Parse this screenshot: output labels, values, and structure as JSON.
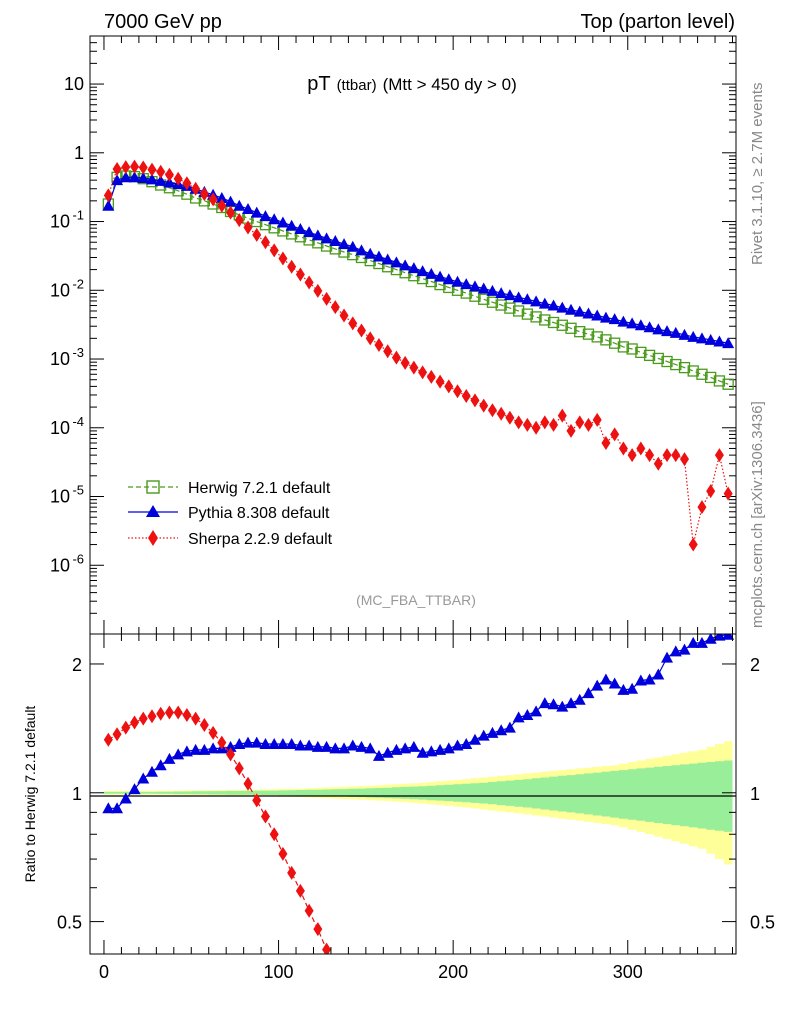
{
  "header": {
    "left": "7000 GeV pp",
    "right": "Top (parton level)"
  },
  "plot_title": {
    "main": "pT",
    "sub": "(ttbar)",
    "rest": "(Mtt > 450 dy > 0)"
  },
  "side_labels": {
    "rivet": "Rivet 3.1.10, ≥ 2.7M events",
    "mcplots": "mcplots.cern.ch [arXiv:1306.3436]"
  },
  "analysis_label": "(MC_FBA_TTBAR)",
  "ratio_ylabel": "Ratio to Herwig 7.2.1 default",
  "legend": [
    {
      "label": "Herwig 7.2.1 default"
    },
    {
      "label": "Pythia 8.308 default"
    },
    {
      "label": "Sherpa 2.2.9 default"
    }
  ],
  "colors": {
    "herwig": "#4a9a1c",
    "pythia": "#0000dd",
    "sherpa": "#ee1111",
    "band_stat": "#99ee99",
    "band_syst": "#ffff99"
  },
  "chart_data": [
    {
      "type": "scatter",
      "yscale": "log",
      "xlim": [
        -8,
        362
      ],
      "ylim": [
        1e-07,
        50
      ],
      "y_tick_labels": [
        "10^-6",
        "10^-5",
        "10^-4",
        "10^-3",
        "10^-2",
        "10^-1",
        "1",
        "10"
      ],
      "legend_position": "bottom-left",
      "x": [
        2.5,
        7.5,
        12.5,
        17.5,
        22.5,
        27.5,
        32.5,
        37.5,
        42.5,
        47.5,
        52.5,
        57.5,
        62.5,
        67.5,
        72.5,
        77.5,
        82.5,
        87.5,
        92.5,
        97.5,
        102.5,
        107.5,
        112.5,
        117.5,
        122.5,
        127.5,
        132.5,
        137.5,
        142.5,
        147.5,
        152.5,
        157.5,
        162.5,
        167.5,
        172.5,
        177.5,
        182.5,
        187.5,
        192.5,
        197.5,
        202.5,
        207.5,
        212.5,
        217.5,
        222.5,
        227.5,
        232.5,
        237.5,
        242.5,
        247.5,
        252.5,
        257.5,
        262.5,
        267.5,
        272.5,
        277.5,
        282.5,
        287.5,
        292.5,
        297.5,
        302.5,
        307.5,
        312.5,
        317.5,
        322.5,
        327.5,
        332.5,
        337.5,
        342.5,
        347.5,
        352.5,
        357.5
      ],
      "series": [
        {
          "name": "Herwig 7.2.1 default",
          "marker": "open-square",
          "line": "dashed",
          "values": [
            0.18,
            0.44,
            0.46,
            0.45,
            0.42,
            0.38,
            0.34,
            0.31,
            0.28,
            0.25,
            0.22,
            0.2,
            0.18,
            0.16,
            0.14,
            0.125,
            0.112,
            0.1,
            0.09,
            0.081,
            0.073,
            0.066,
            0.06,
            0.054,
            0.049,
            0.044,
            0.04,
            0.036,
            0.033,
            0.03,
            0.027,
            0.0245,
            0.022,
            0.02,
            0.018,
            0.0163,
            0.0148,
            0.0134,
            0.0121,
            0.011,
            0.01,
            0.0091,
            0.0082,
            0.0074,
            0.0067,
            0.0061,
            0.0055,
            0.005,
            0.0045,
            0.0041,
            0.0037,
            0.0034,
            0.0031,
            0.0028,
            0.0025,
            0.0023,
            0.0021,
            0.0019,
            0.0017,
            0.0015,
            0.0014,
            0.00125,
            0.00113,
            0.00102,
            0.00092,
            0.00083,
            0.00075,
            0.00067,
            0.0006,
            0.00054,
            0.00048,
            0.00043
          ]
        },
        {
          "name": "Pythia 8.308 default",
          "marker": "filled-triangle",
          "line": "solid",
          "values": [
            0.17,
            0.4,
            0.44,
            0.44,
            0.43,
            0.41,
            0.39,
            0.37,
            0.35,
            0.33,
            0.3,
            0.27,
            0.245,
            0.22,
            0.195,
            0.17,
            0.152,
            0.135,
            0.12,
            0.108,
            0.097,
            0.087,
            0.078,
            0.07,
            0.063,
            0.057,
            0.052,
            0.047,
            0.043,
            0.038,
            0.034,
            0.031,
            0.028,
            0.0255,
            0.023,
            0.021,
            0.019,
            0.0173,
            0.0158,
            0.0145,
            0.0133,
            0.0123,
            0.0114,
            0.0106,
            0.0098,
            0.0091,
            0.0085,
            0.0079,
            0.0074,
            0.0069,
            0.0064,
            0.006,
            0.0056,
            0.0052,
            0.0049,
            0.0046,
            0.0043,
            0.004,
            0.0038,
            0.0035,
            0.0033,
            0.0031,
            0.0029,
            0.0027,
            0.00255,
            0.0024,
            0.00225,
            0.0021,
            0.002,
            0.0019,
            0.0018,
            0.0017
          ]
        },
        {
          "name": "Sherpa 2.2.9 default",
          "marker": "filled-diamond",
          "line": "dotted",
          "values": [
            0.24,
            0.58,
            0.62,
            0.63,
            0.61,
            0.57,
            0.53,
            0.48,
            0.42,
            0.36,
            0.3,
            0.25,
            0.21,
            0.17,
            0.135,
            0.105,
            0.082,
            0.064,
            0.05,
            0.038,
            0.029,
            0.022,
            0.017,
            0.013,
            0.0098,
            0.0075,
            0.0057,
            0.0043,
            0.0033,
            0.0026,
            0.002,
            0.0016,
            0.0013,
            0.00105,
            0.00088,
            0.00075,
            0.00064,
            0.00055,
            0.00047,
            0.0004,
            0.00034,
            0.00029,
            0.00025,
            0.00021,
            0.00018,
            0.00016,
            0.00014,
            0.00012,
            0.00011,
            0.0001,
            0.00012,
            0.00011,
            0.00015,
            9e-05,
            0.00012,
            0.00011,
            0.00013,
            6e-05,
            8e-05,
            5e-05,
            4e-05,
            5e-05,
            4e-05,
            3e-05,
            4e-05,
            4e-05,
            3.5e-05,
            2e-06,
            7e-06,
            1.2e-05,
            4e-05,
            1.1e-05
          ]
        }
      ]
    },
    {
      "type": "scatter",
      "xlim": [
        -8,
        362
      ],
      "ylim": [
        0.42,
        2.35
      ],
      "yscale": "log",
      "ylabel": "Ratio to Herwig 7.2.1 default",
      "y_ticks": [
        0.5,
        1,
        2
      ],
      "y_tick_labels": [
        "0.5",
        "1",
        "2"
      ],
      "x_ticks": [
        0,
        100,
        200,
        300
      ],
      "x_tick_labels": [
        "0",
        "100",
        "200",
        "300"
      ],
      "x": [
        2.5,
        7.5,
        12.5,
        17.5,
        22.5,
        27.5,
        32.5,
        37.5,
        42.5,
        47.5,
        52.5,
        57.5,
        62.5,
        67.5,
        72.5,
        77.5,
        82.5,
        87.5,
        92.5,
        97.5,
        102.5,
        107.5,
        112.5,
        117.5,
        122.5,
        127.5,
        132.5,
        137.5,
        142.5,
        147.5,
        152.5,
        157.5,
        162.5,
        167.5,
        172.5,
        177.5,
        182.5,
        187.5,
        192.5,
        197.5,
        202.5,
        207.5,
        212.5,
        217.5,
        222.5,
        227.5,
        232.5,
        237.5,
        242.5,
        247.5,
        252.5,
        257.5,
        262.5,
        267.5,
        272.5,
        277.5,
        282.5,
        287.5,
        292.5,
        297.5,
        302.5,
        307.5,
        312.5,
        317.5,
        322.5,
        327.5,
        332.5,
        337.5,
        342.5,
        347.5,
        352.5,
        357.5
      ],
      "band_stat": [
        0.005,
        0.005,
        0.005,
        0.005,
        0.005,
        0.005,
        0.006,
        0.006,
        0.007,
        0.007,
        0.008,
        0.008,
        0.009,
        0.009,
        0.01,
        0.01,
        0.011,
        0.011,
        0.012,
        0.012,
        0.013,
        0.014,
        0.015,
        0.016,
        0.017,
        0.018,
        0.019,
        0.02,
        0.022,
        0.023,
        0.025,
        0.026,
        0.028,
        0.03,
        0.032,
        0.034,
        0.036,
        0.039,
        0.041,
        0.044,
        0.047,
        0.05,
        0.053,
        0.056,
        0.06,
        0.064,
        0.068,
        0.072,
        0.076,
        0.081,
        0.086,
        0.091,
        0.096,
        0.1,
        0.105,
        0.11,
        0.115,
        0.12,
        0.125,
        0.13,
        0.135,
        0.14,
        0.145,
        0.15,
        0.155,
        0.16,
        0.165,
        0.17,
        0.175,
        0.18,
        0.185,
        0.19
      ],
      "band_syst": [
        0.01,
        0.01,
        0.01,
        0.01,
        0.01,
        0.011,
        0.011,
        0.012,
        0.012,
        0.013,
        0.013,
        0.014,
        0.014,
        0.015,
        0.015,
        0.016,
        0.017,
        0.018,
        0.019,
        0.02,
        0.021,
        0.022,
        0.023,
        0.025,
        0.027,
        0.029,
        0.031,
        0.033,
        0.035,
        0.037,
        0.039,
        0.041,
        0.044,
        0.047,
        0.05,
        0.053,
        0.056,
        0.06,
        0.064,
        0.068,
        0.072,
        0.076,
        0.081,
        0.086,
        0.091,
        0.096,
        0.1,
        0.105,
        0.11,
        0.115,
        0.12,
        0.125,
        0.13,
        0.135,
        0.14,
        0.145,
        0.15,
        0.155,
        0.16,
        0.17,
        0.18,
        0.19,
        0.2,
        0.21,
        0.22,
        0.23,
        0.24,
        0.25,
        0.26,
        0.28,
        0.3,
        0.32
      ],
      "series": [
        {
          "name": "Pythia 8.308 default",
          "marker": "filled-triangle",
          "line": "solid",
          "values": [
            0.92,
            0.92,
            0.97,
            1.02,
            1.08,
            1.12,
            1.16,
            1.2,
            1.23,
            1.25,
            1.26,
            1.26,
            1.27,
            1.27,
            1.28,
            1.3,
            1.31,
            1.31,
            1.3,
            1.3,
            1.3,
            1.3,
            1.29,
            1.29,
            1.28,
            1.28,
            1.27,
            1.27,
            1.29,
            1.28,
            1.27,
            1.22,
            1.24,
            1.26,
            1.27,
            1.28,
            1.24,
            1.25,
            1.26,
            1.27,
            1.29,
            1.3,
            1.33,
            1.36,
            1.38,
            1.4,
            1.42,
            1.5,
            1.52,
            1.55,
            1.62,
            1.61,
            1.59,
            1.62,
            1.65,
            1.71,
            1.78,
            1.84,
            1.8,
            1.74,
            1.75,
            1.83,
            1.84,
            1.89,
            2.07,
            2.14,
            2.16,
            2.24,
            2.24,
            2.29,
            2.33,
            2.34
          ]
        },
        {
          "name": "Sherpa 2.2.9 default",
          "marker": "filled-diamond",
          "line": "dashed",
          "values": [
            1.33,
            1.37,
            1.42,
            1.46,
            1.49,
            1.51,
            1.53,
            1.54,
            1.54,
            1.52,
            1.49,
            1.44,
            1.38,
            1.31,
            1.23,
            1.14,
            1.05,
            0.96,
            0.88,
            0.8,
            0.72,
            0.65,
            0.59,
            0.53,
            0.48,
            0.43
          ]
        }
      ]
    }
  ]
}
